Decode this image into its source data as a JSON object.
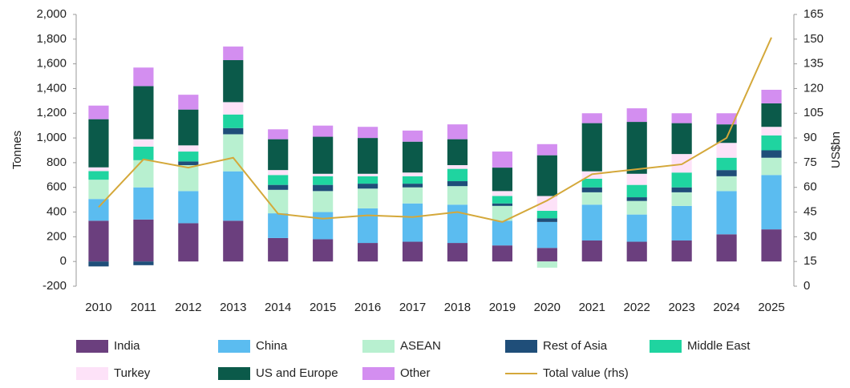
{
  "chart_data": {
    "type": "bar",
    "stacked": true,
    "y_label": "Tonnes",
    "y2_label": "US$bn",
    "categories": [
      "2010",
      "2011",
      "2012",
      "2013",
      "2014",
      "2015",
      "2016",
      "2017",
      "2018",
      "2019",
      "2020",
      "2021",
      "2022",
      "2023",
      "2024",
      "2025"
    ],
    "series": [
      {
        "name": "India",
        "color": "#6b3f7e",
        "values": [
          330,
          340,
          310,
          330,
          190,
          180,
          150,
          160,
          150,
          130,
          110,
          170,
          160,
          170,
          220,
          260
        ]
      },
      {
        "name": "China",
        "color": "#5bbcf0",
        "values": [
          176,
          260,
          260,
          400,
          200,
          220,
          280,
          310,
          310,
          200,
          210,
          290,
          220,
          280,
          350,
          440
        ]
      },
      {
        "name": "ASEAN",
        "color": "#b8f0d0",
        "values": [
          156,
          220,
          210,
          300,
          190,
          170,
          160,
          130,
          150,
          120,
          -50,
          100,
          110,
          110,
          120,
          140
        ]
      },
      {
        "name": "Rest of Asia",
        "color": "#1f4e79",
        "values": [
          -40,
          -30,
          30,
          50,
          40,
          50,
          40,
          30,
          40,
          20,
          30,
          40,
          30,
          40,
          50,
          60
        ]
      },
      {
        "name": "Middle East",
        "color": "#1fd4a0",
        "values": [
          70,
          110,
          80,
          110,
          80,
          70,
          60,
          60,
          100,
          60,
          60,
          70,
          100,
          120,
          100,
          120
        ]
      },
      {
        "name": "Turkey",
        "color": "#fde2f8",
        "values": [
          30,
          60,
          50,
          100,
          40,
          20,
          20,
          30,
          30,
          40,
          120,
          60,
          90,
          150,
          120,
          70
        ]
      },
      {
        "name": "US and Europe",
        "color": "#0b5a4a",
        "values": [
          390,
          430,
          290,
          340,
          250,
          300,
          290,
          250,
          210,
          190,
          330,
          390,
          420,
          250,
          150,
          190
        ]
      },
      {
        "name": "Other",
        "color": "#d38ef0",
        "values": [
          110,
          150,
          120,
          110,
          80,
          90,
          90,
          90,
          120,
          130,
          90,
          80,
          110,
          80,
          90,
          110
        ]
      },
      {
        "name": "Total value (rhs)",
        "type": "line",
        "axis": "y2",
        "color": "#d4a83a",
        "values": [
          48,
          77,
          72,
          78,
          44,
          41,
          43,
          42,
          45,
          39,
          52,
          68,
          71,
          74,
          90,
          151
        ]
      }
    ],
    "ylim": [
      -200,
      2000
    ],
    "yticks": [
      -200,
      0,
      200,
      400,
      600,
      800,
      {
        "value": 1000,
        "label": "1,000"
      },
      {
        "value": 1200,
        "label": "1,200"
      },
      {
        "value": 1400,
        "label": "1,400"
      },
      {
        "value": 1600,
        "label": "1,600"
      },
      {
        "value": 1800,
        "label": "1,800"
      },
      {
        "value": 2000,
        "label": "2,000"
      }
    ],
    "y2lim": [
      0,
      165
    ],
    "y2ticks": [
      0,
      15,
      30,
      45,
      60,
      75,
      90,
      105,
      120,
      135,
      150,
      165
    ],
    "grid": false,
    "legend": "bottom"
  }
}
